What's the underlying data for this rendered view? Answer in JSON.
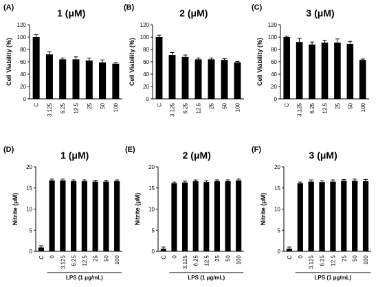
{
  "chart_data": [
    {
      "type": "bar",
      "panel_label": "(A)",
      "title": "1 (μM)",
      "ylabel": "Cell Viability (%)",
      "ylim": [
        0,
        120
      ],
      "yticks": [
        "0",
        "20",
        "40",
        "60",
        "80",
        "100",
        "120"
      ],
      "categories": [
        "C",
        "3.125",
        "6.25",
        "12.5",
        "25",
        "50",
        "100"
      ],
      "values": [
        100,
        72,
        64,
        64,
        62,
        59,
        57
      ],
      "errors": [
        4,
        4,
        2,
        4,
        4,
        4,
        1.5
      ],
      "group_label": "",
      "group_span": null,
      "color": "#000000"
    },
    {
      "type": "bar",
      "panel_label": "(B)",
      "title": "2 (μM)",
      "ylabel": "Cell Viability (%)",
      "ylim": [
        0,
        120
      ],
      "yticks": [
        "0",
        "20",
        "40",
        "60",
        "80",
        "100",
        "120"
      ],
      "categories": [
        "C",
        "3.125",
        "6.25",
        "12.5",
        "25",
        "50",
        "100"
      ],
      "values": [
        100,
        71,
        68,
        64,
        64,
        63,
        59
      ],
      "errors": [
        3,
        4,
        3,
        2,
        2,
        2,
        1.5
      ],
      "group_label": "",
      "group_span": null,
      "color": "#000000"
    },
    {
      "type": "bar",
      "panel_label": "(C)",
      "title": "3 (μM)",
      "ylabel": "Cell Viability (%)",
      "ylim": [
        0,
        120
      ],
      "yticks": [
        "0",
        "20",
        "40",
        "60",
        "80",
        "100",
        "120"
      ],
      "categories": [
        "C",
        "3.125",
        "6.25",
        "12.5",
        "25",
        "50",
        "100"
      ],
      "values": [
        100,
        92,
        88,
        91,
        91,
        89,
        63
      ],
      "errors": [
        1.5,
        6,
        4,
        4,
        6,
        4,
        1.5
      ],
      "group_label": "",
      "group_span": null,
      "color": "#000000"
    },
    {
      "type": "bar",
      "panel_label": "(D)",
      "title": "1 (μM)",
      "ylabel": "Nitrite (μM)",
      "ylim": [
        0,
        20
      ],
      "yticks": [
        "0",
        "5",
        "10",
        "15",
        "20"
      ],
      "categories": [
        "C",
        "0",
        "3.125",
        "6.25",
        "12.5",
        "25",
        "50",
        "100"
      ],
      "values": [
        0.9,
        16.8,
        16.8,
        16.6,
        16.6,
        16.5,
        16.5,
        16.6
      ],
      "errors": [
        0.4,
        0.3,
        0.3,
        0.3,
        0.3,
        0.3,
        0.3,
        0.3
      ],
      "group_label": "LPS (1 μg/mL)",
      "group_span": [
        1,
        7
      ],
      "color": "#000000"
    },
    {
      "type": "bar",
      "panel_label": "(E)",
      "title": "2 (μM)",
      "ylabel": "Nitrite (μM)",
      "ylim": [
        0,
        20
      ],
      "yticks": [
        "0",
        "5",
        "10",
        "15",
        "20"
      ],
      "categories": [
        "C",
        "0",
        "3.125",
        "6.25",
        "12.5",
        "25",
        "50",
        "100"
      ],
      "values": [
        0.6,
        16.1,
        16.3,
        16.6,
        16.4,
        16.6,
        16.6,
        16.8
      ],
      "errors": [
        0.4,
        0.3,
        0.3,
        0.3,
        0.3,
        0.3,
        0.3,
        0.3
      ],
      "group_label": "LPS (1 μg/mL)",
      "group_span": [
        1,
        7
      ],
      "color": "#000000"
    },
    {
      "type": "bar",
      "panel_label": "(F)",
      "title": "3 (μM)",
      "ylabel": "Nitrite (μM)",
      "ylim": [
        0,
        20
      ],
      "yticks": [
        "0",
        "5",
        "10",
        "15",
        "20"
      ],
      "categories": [
        "C",
        "0",
        "3.125",
        "6.25",
        "12.5",
        "25",
        "50",
        "100"
      ],
      "values": [
        0.6,
        16.1,
        16.5,
        16.4,
        16.5,
        16.7,
        16.7,
        16.6
      ],
      "errors": [
        0.4,
        0.3,
        0.4,
        0.3,
        0.4,
        0.3,
        0.4,
        0.4
      ],
      "group_label": "LPS (1 μg/mL)",
      "group_span": [
        1,
        7
      ],
      "color": "#000000"
    }
  ]
}
